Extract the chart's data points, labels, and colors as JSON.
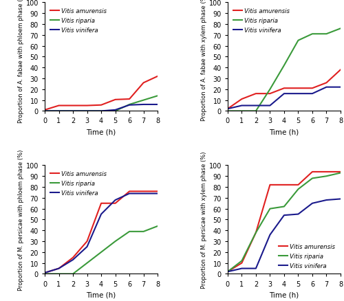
{
  "time": [
    0,
    1,
    2,
    3,
    4,
    5,
    6,
    7,
    8
  ],
  "colors": {
    "amurensis": "#e02020",
    "riparia": "#3a9a3a",
    "vinifera": "#1a1a8c"
  },
  "panel_TL": {
    "ylabel": "Proportion of A. fabae with phloem phase (%)",
    "xlabel": "Time (h)",
    "ylim": [
      0,
      100
    ],
    "legend_loc": "upper left",
    "amurensis": [
      1,
      5,
      5,
      5,
      5.5,
      10.5,
      11,
      26,
      32
    ],
    "riparia": [
      0,
      0,
      0,
      0,
      0,
      0,
      6,
      10,
      14
    ],
    "vinifera": [
      0,
      0,
      0,
      0,
      0,
      1,
      5.5,
      6,
      6
    ]
  },
  "panel_TR": {
    "ylabel": "Proportion of A. fabae with xylem phase (%)",
    "xlabel": "Time (h)",
    "ylim": [
      0,
      100
    ],
    "legend_loc": "upper left",
    "amurensis": [
      2,
      11,
      16,
      16,
      21,
      21,
      21,
      26,
      38
    ],
    "riparia": [
      0,
      0,
      0,
      20,
      42,
      65,
      71,
      71,
      76
    ],
    "vinifera": [
      2,
      5,
      5,
      5,
      16,
      16,
      16,
      22,
      22
    ]
  },
  "panel_BL": {
    "ylabel": "Proportion of M. persicae with phloem phase (%)",
    "xlabel": "Time (h)",
    "ylim": [
      0,
      100
    ],
    "legend_loc": "upper left",
    "amurensis": [
      1,
      5,
      15,
      30,
      65,
      65,
      76,
      76,
      76
    ],
    "riparia": [
      0,
      0,
      0,
      10,
      20,
      30,
      39,
      39,
      44
    ],
    "vinifera": [
      1,
      5,
      13,
      25,
      55,
      68,
      74,
      74,
      74
    ]
  },
  "panel_BR": {
    "ylabel": "Proportion of M. persicae with xylem phase (%)",
    "xlabel": "Time (h)",
    "ylim": [
      0,
      100
    ],
    "legend_loc": "lower right",
    "amurensis": [
      2,
      10,
      38,
      82,
      82,
      82,
      94,
      94,
      94
    ],
    "riparia": [
      2,
      12,
      38,
      60,
      62,
      78,
      88,
      90,
      93
    ],
    "vinifera": [
      2,
      5,
      5,
      36,
      54,
      55,
      65,
      68,
      69
    ]
  },
  "legend_labels": [
    "Vitis amurensis",
    "Vitis riparia",
    "Vitis vinifera"
  ],
  "linewidth": 1.5
}
